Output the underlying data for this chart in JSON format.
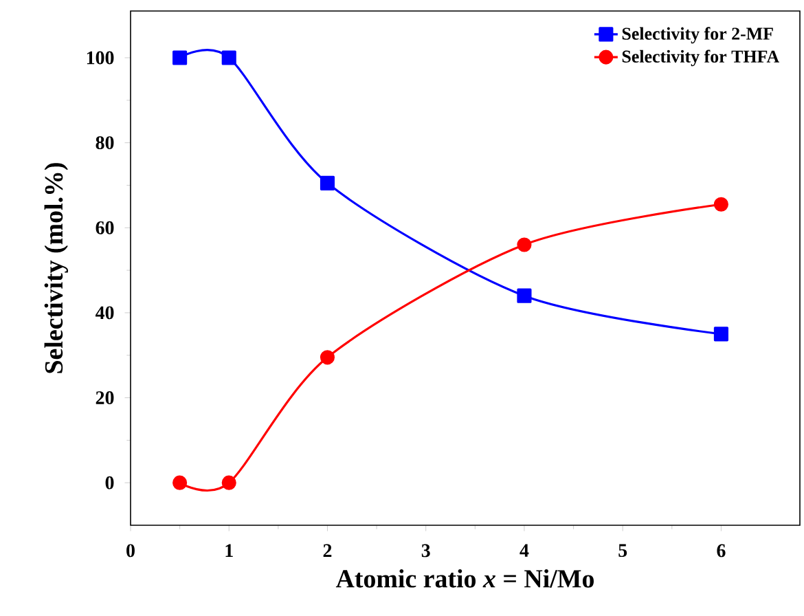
{
  "chart_data": {
    "type": "line",
    "xlabel": "Atomic ratio *x* = Ni/Mo",
    "ylabel": "Selectivity (mol.%)",
    "x": [
      0.5,
      1,
      2,
      4,
      6
    ],
    "series": [
      {
        "name": "Selectivity for 2-MF",
        "color": "#0000ff",
        "marker": "square",
        "values": [
          100,
          100,
          70.5,
          44,
          35
        ]
      },
      {
        "name": "Selectivity for THFA",
        "color": "#ff0000",
        "marker": "circle",
        "values": [
          0,
          0,
          29.5,
          56,
          65.5
        ]
      }
    ],
    "xlim": [
      0,
      6.8
    ],
    "ylim": [
      -10,
      111
    ],
    "xticks": [
      0,
      1,
      2,
      3,
      4,
      5,
      6
    ],
    "yticks": [
      0,
      20,
      40,
      60,
      80,
      100
    ],
    "legend": "top right",
    "grid": false,
    "line_style": "solid"
  }
}
